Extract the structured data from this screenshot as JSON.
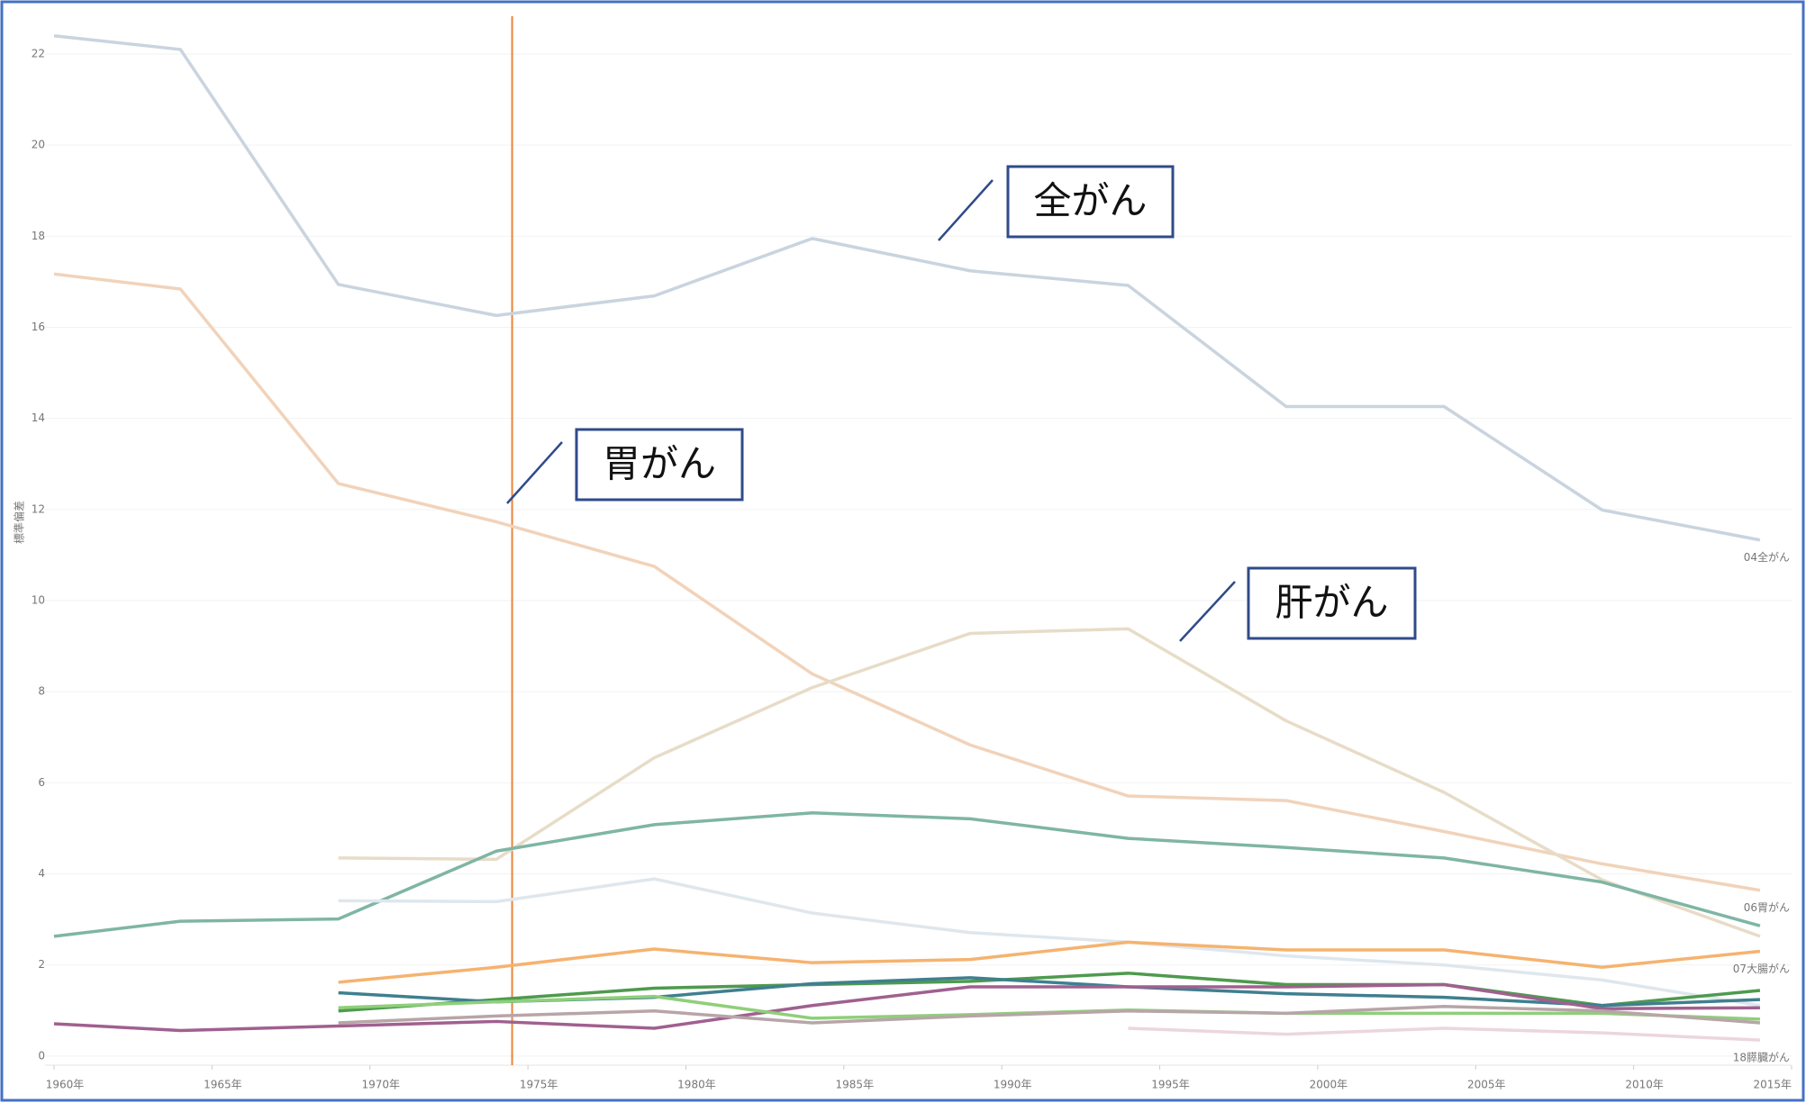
{
  "chart_data": {
    "type": "line",
    "y_label": "標準偏差",
    "x": [
      1960,
      1964,
      1969,
      1974,
      1979,
      1984,
      1989,
      1994,
      1999,
      2004,
      2009,
      2014
    ],
    "xlim": [
      1960,
      2015
    ],
    "ylim": [
      -0.2,
      22.83
    ],
    "xticks": [
      {
        "value": 1960,
        "label": "1960年"
      },
      {
        "value": 1965,
        "label": "1965年"
      },
      {
        "value": 1970,
        "label": "1970年"
      },
      {
        "value": 1975,
        "label": "1975年"
      },
      {
        "value": 1980,
        "label": "1980年"
      },
      {
        "value": 1985,
        "label": "1985年"
      },
      {
        "value": 1990,
        "label": "1990年"
      },
      {
        "value": 1995,
        "label": "1995年"
      },
      {
        "value": 2000,
        "label": "2000年"
      },
      {
        "value": 2005,
        "label": "2005年"
      },
      {
        "value": 2010,
        "label": "2010年"
      },
      {
        "value": 2015,
        "label": "2015年"
      }
    ],
    "yticks": [
      0,
      2,
      4,
      6,
      8,
      10,
      12,
      14,
      16,
      18,
      20,
      22
    ],
    "grid": true,
    "reference_line": {
      "x": 1974.5,
      "color": "#e8843c"
    },
    "annotations": [
      {
        "text": "全がん"
      },
      {
        "text": "胃がん"
      },
      {
        "text": "肝がん"
      }
    ],
    "series": [
      {
        "name": "04全がん",
        "color": "#c9d4df",
        "values": [
          22.4,
          22.1,
          16.94,
          16.26,
          16.69,
          17.95,
          17.24,
          16.92,
          14.26,
          14.26,
          11.99,
          11.33
        ]
      },
      {
        "name": "06胃がん",
        "color": "#f1d3ba",
        "values": [
          17.17,
          16.84,
          12.57,
          11.73,
          10.75,
          8.39,
          6.83,
          5.71,
          5.61,
          4.93,
          4.22,
          3.64
        ]
      },
      {
        "color": "#e7dcc7",
        "values": [
          null,
          null,
          4.35,
          4.32,
          6.55,
          8.09,
          9.28,
          9.38,
          7.36,
          5.79,
          3.87,
          2.63
        ]
      },
      {
        "color": "#7fb5a5",
        "values": [
          2.63,
          2.96,
          3.01,
          4.5,
          5.08,
          5.34,
          5.21,
          4.78,
          4.58,
          4.35,
          3.82,
          2.86
        ]
      },
      {
        "color": "#dfe7ed",
        "values": [
          null,
          null,
          3.41,
          3.39,
          3.89,
          3.14,
          2.71,
          2.5,
          2.2,
          2.0,
          1.67,
          1.11
        ]
      },
      {
        "name": "07大腸がん",
        "color": "#f5b36f",
        "values": [
          null,
          null,
          1.62,
          1.95,
          2.35,
          2.05,
          2.12,
          2.5,
          2.33,
          2.33,
          1.95,
          2.3
        ]
      },
      {
        "color": "#4e9a4e",
        "values": [
          null,
          null,
          0.99,
          1.24,
          1.49,
          1.57,
          1.64,
          1.82,
          1.57,
          1.57,
          1.11,
          1.44
        ]
      },
      {
        "color": "#3f7f8f",
        "values": [
          null,
          null,
          1.39,
          1.19,
          1.29,
          1.59,
          1.72,
          1.52,
          1.37,
          1.29,
          1.11,
          1.24
        ]
      },
      {
        "color": "#a0608f",
        "values": [
          0.71,
          0.56,
          0.66,
          0.76,
          0.61,
          1.11,
          1.52,
          1.52,
          1.52,
          1.57,
          1.04,
          1.06
        ]
      },
      {
        "color": "#8fcf7a",
        "values": [
          null,
          null,
          1.06,
          1.19,
          1.31,
          0.83,
          0.91,
          1.01,
          0.94,
          0.94,
          0.94,
          0.81
        ]
      },
      {
        "color": "#b8a5a8",
        "values": [
          null,
          null,
          0.73,
          0.88,
          0.99,
          0.73,
          0.88,
          0.99,
          0.94,
          1.09,
          0.99,
          0.73
        ]
      },
      {
        "name": "18膵臓がん",
        "color": "#ecd6dc",
        "values": [
          null,
          null,
          null,
          null,
          null,
          null,
          null,
          0.61,
          0.48,
          0.61,
          0.51,
          0.35
        ]
      }
    ]
  }
}
